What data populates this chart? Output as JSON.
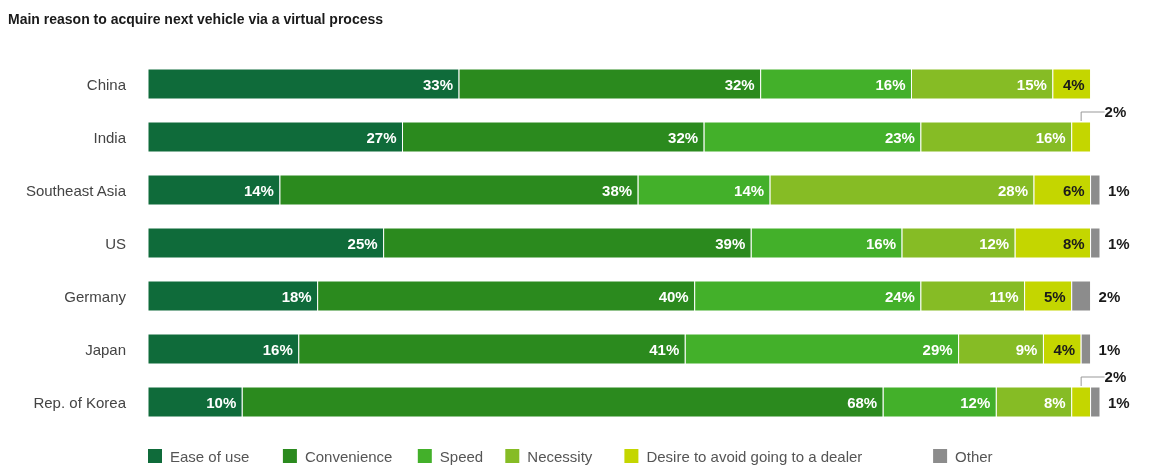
{
  "chart_data": {
    "type": "bar",
    "orientation": "horizontal",
    "stacked": true,
    "title": "Main reason to acquire next vehicle via a virtual process",
    "categories": [
      "China",
      "India",
      "Southeast Asia",
      "US",
      "Germany",
      "Japan",
      "Rep. of Korea"
    ],
    "xlim": [
      0,
      101
    ],
    "tick_labels": "y",
    "legend": "bottom",
    "series": [
      {
        "name": "Ease of use",
        "color": "#0f6b3a",
        "values": [
          33,
          27,
          14,
          25,
          18,
          16,
          10
        ],
        "value_labels": [
          "33%",
          "27%",
          "14%",
          "25%",
          "18%",
          "16%",
          "10%"
        ]
      },
      {
        "name": "Convenience",
        "color": "#2b8a1e",
        "values": [
          32,
          32,
          38,
          39,
          40,
          41,
          68
        ],
        "value_labels": [
          "32%",
          "32%",
          "38%",
          "39%",
          "40%",
          "41%",
          "68%"
        ]
      },
      {
        "name": "Speed",
        "color": "#43b02a",
        "values": [
          16,
          23,
          14,
          16,
          24,
          29,
          12
        ],
        "value_labels": [
          "16%",
          "23%",
          "14%",
          "16%",
          "24%",
          "29%",
          "12%"
        ]
      },
      {
        "name": "Necessity",
        "color": "#86bc25",
        "values": [
          15,
          16,
          28,
          12,
          11,
          9,
          8
        ],
        "value_labels": [
          "15%",
          "16%",
          "28%",
          "12%",
          "11%",
          "9%",
          "8%"
        ]
      },
      {
        "name": "Desire to avoid going to a dealer",
        "color": "#c4d600",
        "values": [
          4,
          2,
          6,
          8,
          5,
          4,
          2
        ],
        "value_labels": [
          "4%",
          "2%",
          "6%",
          "8%",
          "5%",
          "4%",
          "2%"
        ]
      },
      {
        "name": "Other",
        "color": "#8c8c8c",
        "values": [
          null,
          null,
          1,
          1,
          2,
          1,
          1
        ],
        "value_labels": [
          null,
          null,
          "1%",
          "1%",
          "2%",
          "1%",
          "1%"
        ]
      }
    ]
  }
}
